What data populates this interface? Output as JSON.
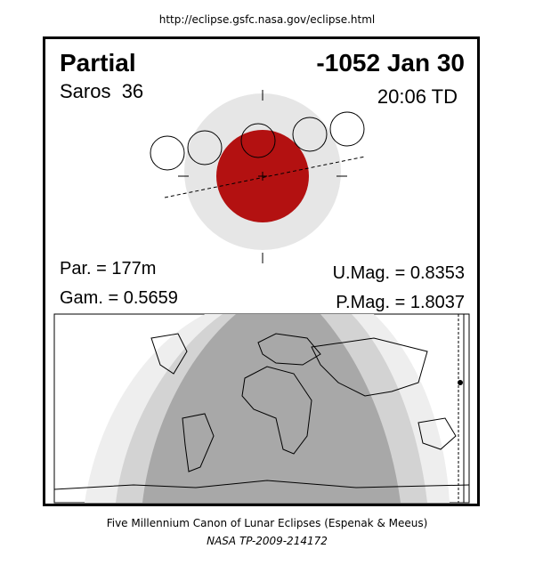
{
  "header": {
    "url": "http://eclipse.gsfc.nasa.gov/eclipse.html"
  },
  "panel": {
    "type": "Partial",
    "date": "-1052 Jan 30",
    "saros": "Saros  36",
    "time": "20:06 TD",
    "par": "Par. = 177m",
    "gam": "Gam. = 0.5659",
    "umag": "U.Mag. = 0.8353",
    "pmag": "P.Mag. = 1.8037"
  },
  "footer": {
    "line1": "Five Millennium Canon of Lunar Eclipses (Espenak & Meeus)",
    "line2": "NASA TP-2009-214172"
  }
}
